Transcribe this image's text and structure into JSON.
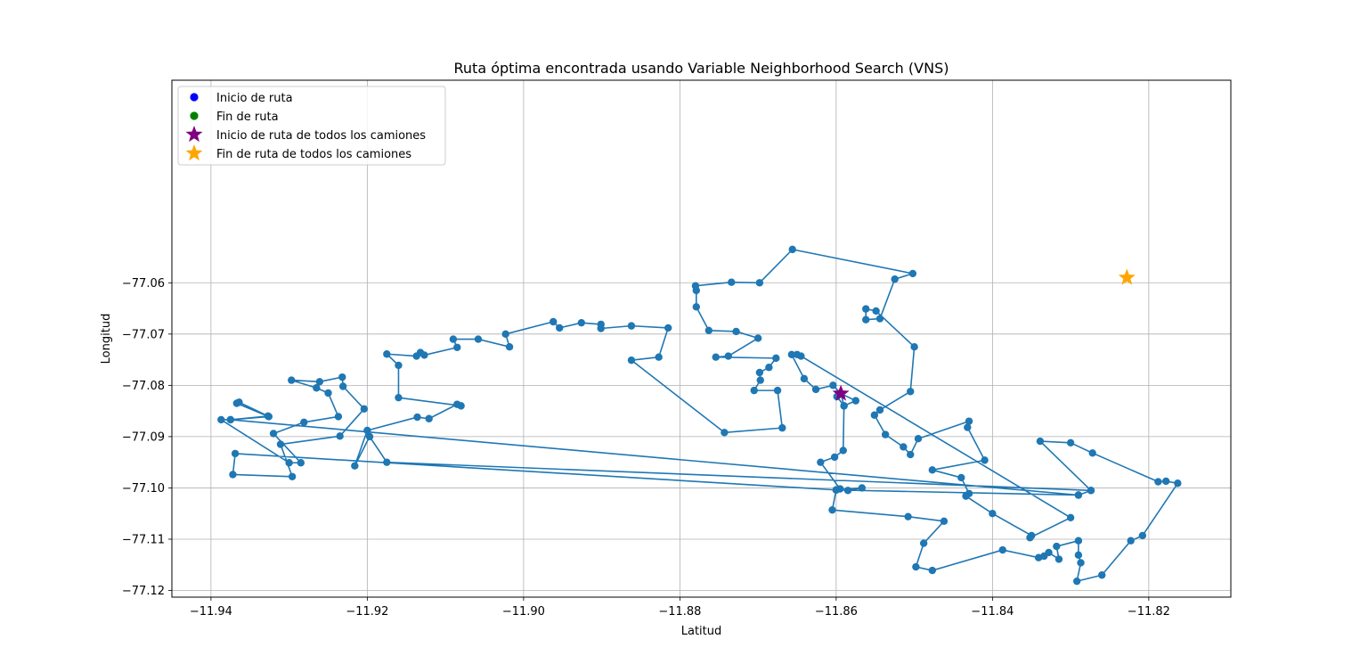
{
  "chart_data": {
    "type": "scatter",
    "title": "Ruta óptima encontrada usando Variable Neighborhood Search (VNS)",
    "xlabel": "Latitud",
    "ylabel": "Longitud",
    "xlim": [
      -11.945,
      -11.8095
    ],
    "ylim": [
      -77.1213,
      -77.0205
    ],
    "xticks": [
      -11.94,
      -11.92,
      -11.9,
      -11.88,
      -11.86,
      -11.84,
      -11.82
    ],
    "xtick_labels": [
      "−11.94",
      "−11.92",
      "−11.90",
      "−11.88",
      "−11.86",
      "−11.84",
      "−11.82"
    ],
    "yticks": [
      -77.06,
      -77.07,
      -77.08,
      -77.09,
      -77.1,
      -77.11,
      -77.12
    ],
    "ytick_labels": [
      "−77.06",
      "−77.07",
      "−77.08",
      "−77.09",
      "−77.10",
      "−77.11",
      "−77.12"
    ],
    "grid": true,
    "legend_position": "top-left",
    "legend": [
      {
        "label": "Inicio de ruta",
        "marker": "circle",
        "color": "#0000ff"
      },
      {
        "label": "Fin de ruta",
        "marker": "circle",
        "color": "#008000"
      },
      {
        "label": "Inicio de ruta de todos los camiones",
        "marker": "star",
        "color": "#800080"
      },
      {
        "label": "Fin de ruta de todos los camiones",
        "marker": "star",
        "color": "#ffa500"
      }
    ],
    "route_color": "#1f77b4",
    "route": [
      [
        -11.8594,
        -77.0816
      ],
      [
        -11.8599,
        -77.0822
      ],
      [
        -11.859,
        -77.084
      ],
      [
        -11.8591,
        -77.0927
      ],
      [
        -11.8602,
        -77.094
      ],
      [
        -11.862,
        -77.095
      ],
      [
        -11.8595,
        -77.1002
      ],
      [
        -11.8585,
        -77.1005
      ],
      [
        -11.8567,
        -77.1
      ],
      [
        -11.86,
        -77.1004
      ],
      [
        -11.8605,
        -77.1043
      ],
      [
        -11.8508,
        -77.1056
      ],
      [
        -11.8462,
        -77.1065
      ],
      [
        -11.8488,
        -77.1108
      ],
      [
        -11.8498,
        -77.1154
      ],
      [
        -11.8477,
        -77.1161
      ],
      [
        -11.8387,
        -77.1121
      ],
      [
        -11.8341,
        -77.1136
      ],
      [
        -11.8334,
        -77.1133
      ],
      [
        -11.8328,
        -77.1126
      ],
      [
        -11.8315,
        -77.1139
      ],
      [
        -11.8318,
        -77.1114
      ],
      [
        -11.829,
        -77.1103
      ],
      [
        -11.829,
        -77.1131
      ],
      [
        -11.8287,
        -77.1146
      ],
      [
        -11.8292,
        -77.1182
      ],
      [
        -11.826,
        -77.117
      ],
      [
        -11.8223,
        -77.1103
      ],
      [
        -11.8208,
        -77.1093
      ],
      [
        -11.8163,
        -77.0991
      ],
      [
        -11.8178,
        -77.0987
      ],
      [
        -11.8188,
        -77.0988
      ],
      [
        -11.8272,
        -77.0932
      ],
      [
        -11.83,
        -77.0912
      ],
      [
        -11.8339,
        -77.0909
      ],
      [
        -11.8274,
        -77.1005
      ],
      [
        -11.829,
        -77.1014
      ],
      [
        -11.9375,
        -77.0867
      ],
      [
        -11.9327,
        -77.086
      ],
      [
        -11.9364,
        -77.0833
      ],
      [
        -11.9367,
        -77.0835
      ],
      [
        -11.9326,
        -77.0861
      ],
      [
        -11.9375,
        -77.0867
      ],
      [
        -11.9387,
        -77.0867
      ],
      [
        -11.93,
        -77.0951
      ],
      [
        -11.9285,
        -77.0951
      ],
      [
        -11.932,
        -77.0894
      ],
      [
        -11.9281,
        -77.0872
      ],
      [
        -11.9237,
        -77.0861
      ],
      [
        -11.925,
        -77.0815
      ],
      [
        -11.9265,
        -77.0805
      ],
      [
        -11.9297,
        -77.079
      ],
      [
        -11.9261,
        -77.0793
      ],
      [
        -11.9232,
        -77.0784
      ],
      [
        -11.9231,
        -77.0802
      ],
      [
        -11.9204,
        -77.0846
      ],
      [
        -11.9235,
        -77.0899
      ],
      [
        -11.9311,
        -77.0915
      ],
      [
        -11.9296,
        -77.0978
      ],
      [
        -11.9372,
        -77.0974
      ],
      [
        -11.9369,
        -77.0933
      ],
      [
        -11.86,
        -77.1004
      ],
      [
        -11.829,
        -77.1014
      ],
      [
        -11.8274,
        -77.1005
      ],
      [
        -11.9175,
        -77.095
      ],
      [
        -11.9197,
        -77.09
      ],
      [
        -11.9216,
        -77.0957
      ],
      [
        -11.92,
        -77.0888
      ],
      [
        -11.9136,
        -77.0862
      ],
      [
        -11.9121,
        -77.0865
      ],
      [
        -11.9085,
        -77.0837
      ],
      [
        -11.908,
        -77.084
      ],
      [
        -11.916,
        -77.0824
      ],
      [
        -11.916,
        -77.0761
      ],
      [
        -11.9175,
        -77.0739
      ],
      [
        -11.9137,
        -77.0743
      ],
      [
        -11.9132,
        -77.0736
      ],
      [
        -11.9127,
        -77.0741
      ],
      [
        -11.9085,
        -77.0726
      ],
      [
        -11.909,
        -77.071
      ],
      [
        -11.9058,
        -77.071
      ],
      [
        -11.9018,
        -77.0725
      ],
      [
        -11.9023,
        -77.07
      ],
      [
        -11.8962,
        -77.0676
      ],
      [
        -11.8954,
        -77.0688
      ],
      [
        -11.8926,
        -77.0678
      ],
      [
        -11.8901,
        -77.0681
      ],
      [
        -11.8901,
        -77.0689
      ],
      [
        -11.8862,
        -77.0684
      ],
      [
        -11.8815,
        -77.0688
      ],
      [
        -11.8827,
        -77.0745
      ],
      [
        -11.8862,
        -77.0751
      ],
      [
        -11.8743,
        -77.0892
      ],
      [
        -11.8669,
        -77.0883
      ],
      [
        -11.8675,
        -77.081
      ],
      [
        -11.8705,
        -77.081
      ],
      [
        -11.8697,
        -77.079
      ],
      [
        -11.8698,
        -77.0775
      ],
      [
        -11.8686,
        -77.0765
      ],
      [
        -11.8677,
        -77.0747
      ],
      [
        -11.8754,
        -77.0745
      ],
      [
        -11.8738,
        -77.0743
      ],
      [
        -11.87,
        -77.0708
      ],
      [
        -11.8728,
        -77.0695
      ],
      [
        -11.8763,
        -77.0693
      ],
      [
        -11.8779,
        -77.0647
      ],
      [
        -11.8779,
        -77.0615
      ],
      [
        -11.878,
        -77.0606
      ],
      [
        -11.8734,
        -77.0599
      ],
      [
        -11.8698,
        -77.06
      ],
      [
        -11.8656,
        -77.0535
      ],
      [
        -11.8502,
        -77.0582
      ],
      [
        -11.8525,
        -77.0593
      ],
      [
        -11.8544,
        -77.067
      ],
      [
        -11.8562,
        -77.0672
      ],
      [
        -11.8562,
        -77.0651
      ],
      [
        -11.8549,
        -77.0655
      ],
      [
        -11.85,
        -77.0725
      ],
      [
        -11.8505,
        -77.0812
      ],
      [
        -11.8544,
        -77.0848
      ],
      [
        -11.8551,
        -77.0858
      ],
      [
        -11.8537,
        -77.0896
      ],
      [
        -11.8514,
        -77.092
      ],
      [
        -11.8505,
        -77.0935
      ],
      [
        -11.8495,
        -77.0904
      ],
      [
        -11.843,
        -77.087
      ],
      [
        -11.8432,
        -77.0882
      ],
      [
        -11.841,
        -77.0946
      ],
      [
        -11.8477,
        -77.0965
      ],
      [
        -11.844,
        -77.098
      ],
      [
        -11.843,
        -77.1011
      ],
      [
        -11.8434,
        -77.1016
      ],
      [
        -11.84,
        -77.105
      ],
      [
        -11.835,
        -77.1093
      ],
      [
        -11.8352,
        -77.1097
      ],
      [
        -11.83,
        -77.1058
      ],
      [
        -11.8645,
        -77.0743
      ],
      [
        -11.865,
        -77.074
      ],
      [
        -11.8657,
        -77.074
      ],
      [
        -11.8641,
        -77.0787
      ],
      [
        -11.8626,
        -77.0808
      ],
      [
        -11.8604,
        -77.08
      ],
      [
        -11.8594,
        -77.0816
      ],
      [
        -11.859,
        -77.084
      ],
      [
        -11.8575,
        -77.083
      ],
      [
        -11.8594,
        -77.0816
      ]
    ],
    "start_all": {
      "x": -11.8594,
      "y": -77.0816
    },
    "end_all": {
      "x": -11.8228,
      "y": -77.059
    }
  }
}
